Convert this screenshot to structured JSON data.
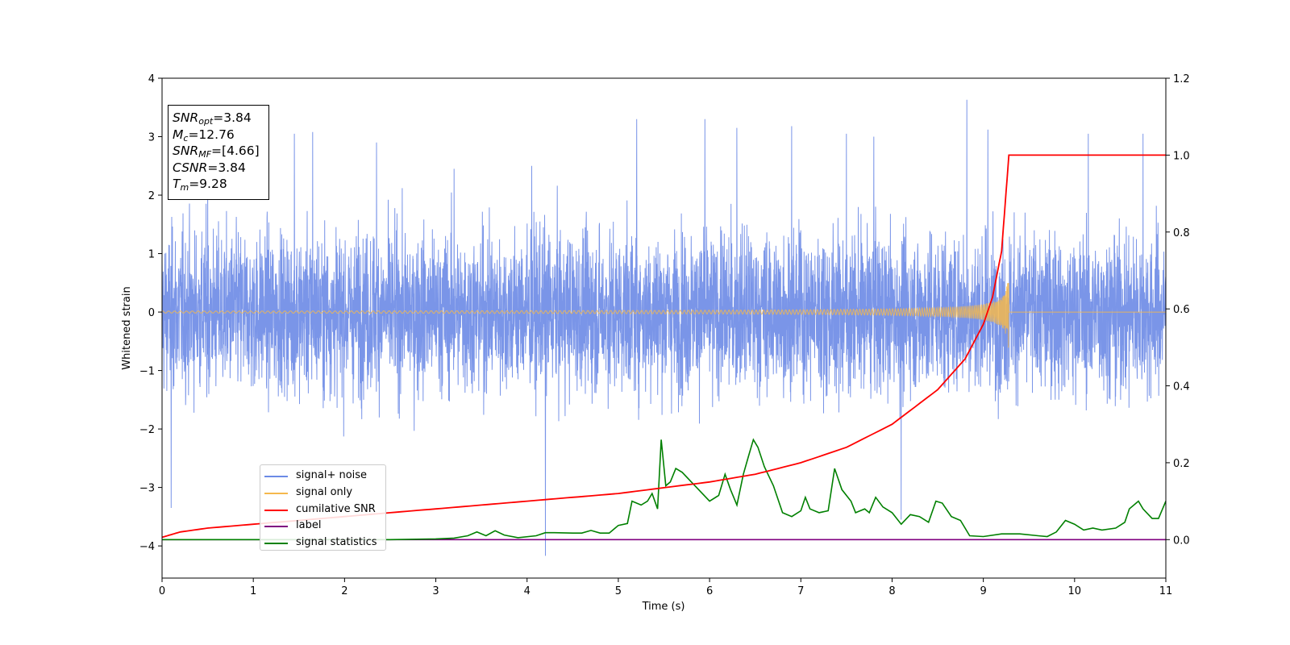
{
  "chart_data": {
    "type": "line",
    "xlabel": "Time (s)",
    "ylabel": "Whitened strain",
    "xlim": [
      0,
      11
    ],
    "ylim": [
      -4.55,
      4.0
    ],
    "y2lim": [
      -0.1,
      1.2
    ],
    "x_ticks": [
      "0",
      "1",
      "2",
      "3",
      "4",
      "5",
      "6",
      "7",
      "8",
      "9",
      "10",
      "11"
    ],
    "y_ticks": [
      "4",
      "3",
      "2",
      "1",
      "0",
      "−1",
      "−2",
      "−3",
      "−4"
    ],
    "y2_ticks": [
      "1.2",
      "1.0",
      "0.8",
      "0.6",
      "0.4",
      "0.2",
      "0.0"
    ],
    "legend_position": "lower-left",
    "series": [
      {
        "name": "signal+ noise",
        "color": "#6b8ae6",
        "axis": "left",
        "description_values": {
          "typical_range": [
            -2.5,
            2.5
          ],
          "max": 3.63,
          "min": -4.17
        },
        "spikes": [
          [
            0.1,
            -3.35
          ],
          [
            0.5,
            2.35
          ],
          [
            1.45,
            3.05
          ],
          [
            1.65,
            3.08
          ],
          [
            2.35,
            2.9
          ],
          [
            3.2,
            2.45
          ],
          [
            4.2,
            -4.17
          ],
          [
            4.05,
            2.5
          ],
          [
            5.2,
            3.3
          ],
          [
            5.95,
            3.3
          ],
          [
            6.3,
            3.15
          ],
          [
            6.9,
            3.18
          ],
          [
            7.5,
            3.05
          ],
          [
            7.8,
            3.0
          ],
          [
            8.1,
            -3.55
          ],
          [
            8.82,
            3.63
          ],
          [
            9.05,
            3.12
          ],
          [
            10.15,
            3.05
          ],
          [
            10.75,
            3.05
          ]
        ]
      },
      {
        "name": "signal only",
        "color": "#f5b84d",
        "axis": "left",
        "description_values": {
          "merger_time": 9.28,
          "peak_amplitude": 0.7
        }
      },
      {
        "name": "cumilative SNR",
        "color": "#ff0000",
        "axis": "right",
        "points": [
          [
            0,
            0.006
          ],
          [
            0.2,
            0.02
          ],
          [
            0.5,
            0.03
          ],
          [
            1,
            0.04
          ],
          [
            1.5,
            0.05
          ],
          [
            2,
            0.06
          ],
          [
            2.5,
            0.07
          ],
          [
            3,
            0.08
          ],
          [
            3.5,
            0.09
          ],
          [
            4,
            0.1
          ],
          [
            4.5,
            0.11
          ],
          [
            5,
            0.12
          ],
          [
            5.5,
            0.135
          ],
          [
            6,
            0.15
          ],
          [
            6.5,
            0.17
          ],
          [
            7,
            0.2
          ],
          [
            7.5,
            0.24
          ],
          [
            8,
            0.3
          ],
          [
            8.5,
            0.39
          ],
          [
            8.8,
            0.47
          ],
          [
            9.0,
            0.56
          ],
          [
            9.1,
            0.63
          ],
          [
            9.2,
            0.75
          ],
          [
            9.28,
            1.0
          ],
          [
            11,
            1.0
          ]
        ]
      },
      {
        "name": "label",
        "color": "#800080",
        "axis": "right",
        "points": [
          [
            0,
            0.0
          ],
          [
            11,
            0.0
          ]
        ]
      },
      {
        "name": "signal statistics",
        "color": "#008000",
        "axis": "right",
        "points": [
          [
            0,
            0.0
          ],
          [
            1,
            0.0
          ],
          [
            2,
            0.0
          ],
          [
            2.5,
            0.0
          ],
          [
            3,
            0.002
          ],
          [
            3.2,
            0.004
          ],
          [
            3.35,
            0.01
          ],
          [
            3.45,
            0.02
          ],
          [
            3.55,
            0.01
          ],
          [
            3.65,
            0.023
          ],
          [
            3.75,
            0.012
          ],
          [
            3.9,
            0.005
          ],
          [
            4.1,
            0.01
          ],
          [
            4.2,
            0.018
          ],
          [
            4.3,
            0.018
          ],
          [
            4.5,
            0.017
          ],
          [
            4.6,
            0.017
          ],
          [
            4.7,
            0.024
          ],
          [
            4.8,
            0.017
          ],
          [
            4.9,
            0.017
          ],
          [
            5.0,
            0.037
          ],
          [
            5.1,
            0.042
          ],
          [
            5.15,
            0.1
          ],
          [
            5.25,
            0.09
          ],
          [
            5.32,
            0.1
          ],
          [
            5.37,
            0.12
          ],
          [
            5.43,
            0.08
          ],
          [
            5.47,
            0.26
          ],
          [
            5.52,
            0.14
          ],
          [
            5.57,
            0.15
          ],
          [
            5.63,
            0.185
          ],
          [
            5.7,
            0.175
          ],
          [
            5.8,
            0.15
          ],
          [
            5.9,
            0.125
          ],
          [
            6.0,
            0.1
          ],
          [
            6.1,
            0.115
          ],
          [
            6.17,
            0.17
          ],
          [
            6.23,
            0.13
          ],
          [
            6.3,
            0.09
          ],
          [
            6.37,
            0.17
          ],
          [
            6.43,
            0.22
          ],
          [
            6.48,
            0.26
          ],
          [
            6.53,
            0.24
          ],
          [
            6.6,
            0.19
          ],
          [
            6.7,
            0.14
          ],
          [
            6.8,
            0.07
          ],
          [
            6.9,
            0.06
          ],
          [
            7.0,
            0.075
          ],
          [
            7.05,
            0.11
          ],
          [
            7.1,
            0.08
          ],
          [
            7.2,
            0.07
          ],
          [
            7.3,
            0.075
          ],
          [
            7.37,
            0.185
          ],
          [
            7.45,
            0.13
          ],
          [
            7.55,
            0.1
          ],
          [
            7.6,
            0.07
          ],
          [
            7.7,
            0.08
          ],
          [
            7.75,
            0.07
          ],
          [
            7.82,
            0.11
          ],
          [
            7.9,
            0.085
          ],
          [
            8.0,
            0.07
          ],
          [
            8.1,
            0.04
          ],
          [
            8.2,
            0.065
          ],
          [
            8.3,
            0.06
          ],
          [
            8.4,
            0.045
          ],
          [
            8.48,
            0.1
          ],
          [
            8.55,
            0.095
          ],
          [
            8.65,
            0.06
          ],
          [
            8.75,
            0.05
          ],
          [
            8.85,
            0.01
          ],
          [
            9.0,
            0.008
          ],
          [
            9.2,
            0.015
          ],
          [
            9.4,
            0.015
          ],
          [
            9.6,
            0.01
          ],
          [
            9.7,
            0.008
          ],
          [
            9.8,
            0.02
          ],
          [
            9.9,
            0.05
          ],
          [
            10.0,
            0.04
          ],
          [
            10.1,
            0.025
          ],
          [
            10.2,
            0.03
          ],
          [
            10.3,
            0.025
          ],
          [
            10.45,
            0.03
          ],
          [
            10.55,
            0.045
          ],
          [
            10.6,
            0.08
          ],
          [
            10.7,
            0.1
          ],
          [
            10.75,
            0.08
          ],
          [
            10.85,
            0.055
          ],
          [
            10.92,
            0.055
          ],
          [
            11.0,
            0.1
          ]
        ]
      }
    ],
    "annotations": [
      {
        "id": "snr_opt",
        "base": "SNR",
        "sub": "opt",
        "value": "=3.84"
      },
      {
        "id": "mc",
        "base": "M",
        "sub": "c",
        "value": "=12.76"
      },
      {
        "id": "snr_mf",
        "base": "SNR",
        "sub": "MF",
        "value": "=[4.66]"
      },
      {
        "id": "csnr",
        "base": "CSNR",
        "sub": "",
        "value": "=3.84"
      },
      {
        "id": "tm",
        "base": "T",
        "sub": "m",
        "value": "=9.28"
      }
    ]
  }
}
